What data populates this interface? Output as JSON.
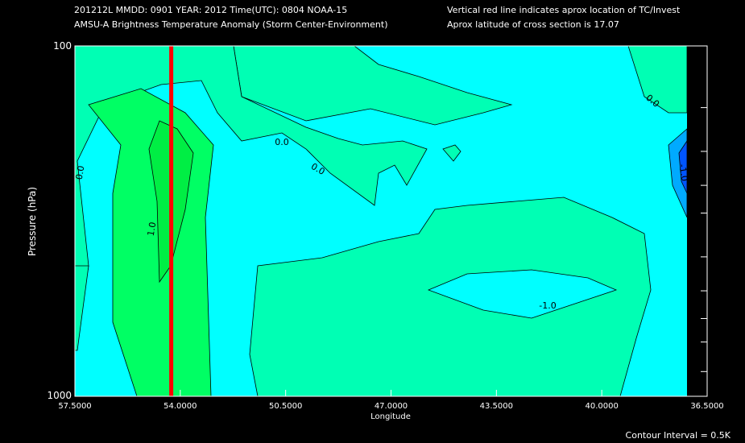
{
  "header": {
    "line1": "201212L  MMDD: 0901 YEAR: 2012 Time(UTC): 0804 NOAA-15",
    "line2": "AMSU-A Brightness Temperature Anomaly (Storm Center-Environment)",
    "note1": "Vertical red line indicates aprox location of TC/Invest",
    "note2": "Aprox latitude of cross section is 17.07"
  },
  "footer": {
    "contour_interval": "Contour Interval = 0.5K"
  },
  "chart_data": {
    "type": "contour",
    "xlabel": "Longitude",
    "ylabel": "Pressure (hPa)",
    "x_ticks": [
      "57.5000",
      "54.0000",
      "50.5000",
      "47.0000",
      "43.5000",
      "40.0000",
      "36.5000"
    ],
    "x_range": [
      57.5,
      36.5
    ],
    "y_ticks": [
      "100",
      "1000"
    ],
    "y_range": [
      100,
      1000
    ],
    "y_scale": "log",
    "storm_longitude": 54.3,
    "contour_labels": [
      "0.0",
      "0.0",
      "0.0",
      "0.0",
      "1.0",
      "-1.0",
      "-1.0"
    ],
    "colors": {
      "level_neg1": "#00aaff",
      "level_neg05": "#00ffff",
      "level_0": "#00ffb4",
      "level_05": "#00ff64",
      "level_1": "#00ee44",
      "storm_line": "#ff0000",
      "missing": "#000000"
    }
  }
}
